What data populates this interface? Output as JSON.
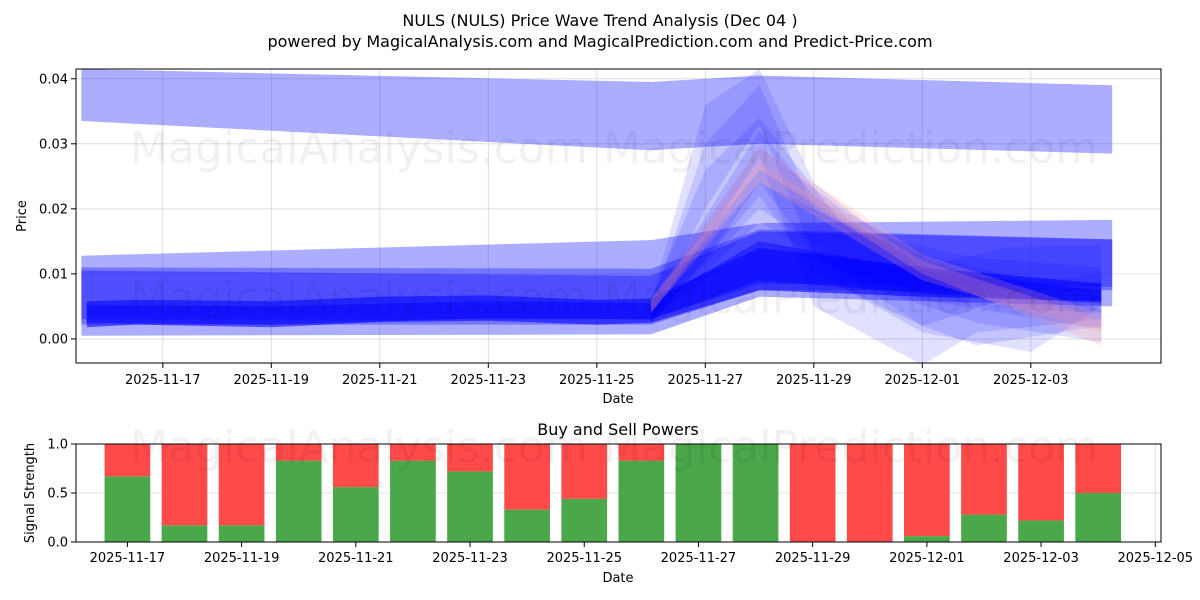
{
  "title_line1": "NULS (NULS) Price Wave Trend Analysis (Dec 04 )",
  "title_line2": "powered by MagicalAnalysis.com and MagicalPrediction.com and Predict-Price.com",
  "watermarks": [
    "MagicalAnalysis.com",
    "MagicalPrediction.com"
  ],
  "colors": {
    "band": "#0000ff",
    "band_alt": "#ff9999",
    "buy": "#4aa84a",
    "sell": "#ff4a4a",
    "grid": "#d8d8d8"
  },
  "chart_data": [
    {
      "type": "area",
      "xlabel": "Date",
      "ylabel": "Price",
      "ylim": [
        -0.0037,
        0.0415
      ],
      "xrange": [
        "2025-11-15.4",
        "2025-12-05.4"
      ],
      "x_ticks": [
        "2025-11-17",
        "2025-11-19",
        "2025-11-21",
        "2025-11-23",
        "2025-11-25",
        "2025-11-27",
        "2025-11-29",
        "2025-12-01",
        "2025-12-03"
      ],
      "y_ticks": [
        "0.00",
        "0.01",
        "0.02",
        "0.03",
        "0.04"
      ],
      "grid": true,
      "series": [
        {
          "name": "wide-upper-band",
          "color": "blue",
          "opacity": 0.32,
          "x": [
            "2025-11-15.5",
            "2025-11-26",
            "2025-11-28",
            "2025-12-04.5"
          ],
          "upper": [
            0.0415,
            0.0395,
            0.0405,
            0.039
          ],
          "lower": [
            0.0335,
            0.029,
            0.03,
            0.0285
          ]
        },
        {
          "name": "upper-channel",
          "color": "blue",
          "opacity": 0.32,
          "x": [
            "2025-11-15.5",
            "2025-11-26",
            "2025-11-28",
            "2025-12-04.5"
          ],
          "upper": [
            0.0128,
            0.0152,
            0.0178,
            0.0183
          ],
          "lower": [
            0.0005,
            0.0007,
            0.0065,
            0.005
          ]
        },
        {
          "name": "mid-channel",
          "color": "blue",
          "opacity": 0.32,
          "x": [
            "2025-11-15.5",
            "2025-11-26",
            "2025-11-28",
            "2025-12-04.5"
          ],
          "upper": [
            0.011,
            0.0108,
            0.0168,
            0.0153
          ],
          "lower": [
            0.0022,
            0.0022,
            0.0075,
            0.0075
          ]
        },
        {
          "name": "inner-channel",
          "color": "blue",
          "opacity": 0.32,
          "x": [
            "2025-11-15.5",
            "2025-11-26",
            "2025-11-28",
            "2025-12-04.5"
          ],
          "upper": [
            0.0105,
            0.0097,
            0.0165,
            0.0153
          ],
          "lower": [
            0.003,
            0.003,
            0.0085,
            0.008
          ]
        },
        {
          "name": "core-path",
          "color": "blue",
          "opacity": 0.55,
          "x": [
            "2025-11-15.6",
            "2025-11-16.5",
            "2025-11-19",
            "2025-11-21",
            "2025-11-23",
            "2025-11-25",
            "2025-11-26",
            "2025-11-28",
            "2025-12-01",
            "2025-12-04.3"
          ],
          "upper": [
            0.0058,
            0.006,
            0.0058,
            0.0065,
            0.0067,
            0.006,
            0.0062,
            0.014,
            0.011,
            0.0085
          ],
          "lower": [
            0.0018,
            0.0022,
            0.0018,
            0.0026,
            0.0028,
            0.0022,
            0.0025,
            0.0075,
            0.0065,
            0.0058
          ]
        },
        {
          "name": "core-path-2",
          "color": "blue",
          "opacity": 0.45,
          "x": [
            "2025-11-15.6",
            "2025-11-19",
            "2025-11-23",
            "2025-11-26",
            "2025-11-28",
            "2025-12-01",
            "2025-12-04.3"
          ],
          "upper": [
            0.0052,
            0.005,
            0.0058,
            0.0055,
            0.015,
            0.0105,
            0.0075
          ],
          "lower": [
            0.0025,
            0.0022,
            0.0032,
            0.003,
            0.009,
            0.007,
            0.0055
          ]
        },
        {
          "name": "spike-1",
          "color": "blue",
          "opacity": 0.12,
          "x": [
            "2025-11-26",
            "2025-11-27",
            "2025-11-28",
            "2025-11-29",
            "2025-12-01",
            "2025-12-02",
            "2025-12-04.3"
          ],
          "upper": [
            0.006,
            0.036,
            0.0415,
            0.024,
            0.011,
            0.007,
            0.008
          ],
          "lower": [
            0.003,
            0.02,
            0.033,
            0.013,
            0.002,
            -0.001,
            0.002
          ]
        },
        {
          "name": "spike-2",
          "color": "blue",
          "opacity": 0.12,
          "x": [
            "2025-11-26",
            "2025-11-27",
            "2025-11-28",
            "2025-11-29",
            "2025-12-01",
            "2025-12-02",
            "2025-12-04.3"
          ],
          "upper": [
            0.005,
            0.03,
            0.039,
            0.02,
            0.012,
            0.0045,
            0.009
          ],
          "lower": [
            0.002,
            0.015,
            0.028,
            0.005,
            -0.004,
            0.001,
            0.003
          ]
        },
        {
          "name": "spike-3",
          "color": "blue",
          "opacity": 0.12,
          "x": [
            "2025-11-26",
            "2025-11-27",
            "2025-11-28",
            "2025-11-29.5",
            "2025-12-01",
            "2025-12-03",
            "2025-12-04.3"
          ],
          "upper": [
            0.006,
            0.026,
            0.034,
            0.018,
            0.01,
            0.009,
            0.01
          ],
          "lower": [
            0.003,
            0.012,
            0.024,
            0.008,
            0.001,
            -0.002,
            0.005
          ]
        },
        {
          "name": "spike-4",
          "color": "blue",
          "opacity": 0.12,
          "x": [
            "2025-11-26",
            "2025-11-28",
            "2025-11-29",
            "2025-12-01",
            "2025-12-02.5",
            "2025-12-04.3"
          ],
          "upper": [
            0.0055,
            0.032,
            0.022,
            0.011,
            0.014,
            0.0145
          ],
          "lower": [
            0.0025,
            0.022,
            0.01,
            0.002,
            0.006,
            0.006
          ]
        },
        {
          "name": "spike-5",
          "color": "blue",
          "opacity": 0.12,
          "x": [
            "2025-11-26",
            "2025-11-28",
            "2025-11-29.5",
            "2025-12-01",
            "2025-12-04.3"
          ],
          "upper": [
            0.006,
            0.0295,
            0.02,
            0.013,
            0.0065
          ],
          "lower": [
            0.003,
            0.02,
            0.012,
            0.006,
            0.0015
          ]
        },
        {
          "name": "spike-6",
          "color": "blue",
          "opacity": 0.12,
          "x": [
            "2025-11-26",
            "2025-11-28",
            "2025-11-30",
            "2025-12-02",
            "2025-12-04.3"
          ],
          "upper": [
            0.0055,
            0.026,
            0.016,
            0.0095,
            0.0045
          ],
          "lower": [
            0.0025,
            0.018,
            0.008,
            0.0025,
            -0.0005
          ]
        },
        {
          "name": "spike-7",
          "color": "blue",
          "opacity": 0.12,
          "x": [
            "2025-11-26",
            "2025-11-28",
            "2025-11-30",
            "2025-12-02",
            "2025-12-04.3"
          ],
          "upper": [
            0.006,
            0.024,
            0.016,
            0.0125,
            0.011
          ],
          "lower": [
            0.003,
            0.015,
            0.009,
            0.005,
            0.004
          ]
        },
        {
          "name": "pink-band-1",
          "color": "pink",
          "opacity": 0.22,
          "x": [
            "2025-11-26",
            "2025-11-28",
            "2025-12-01",
            "2025-12-04.3"
          ],
          "upper": [
            0.006,
            0.0295,
            0.013,
            0.004
          ],
          "lower": [
            0.004,
            0.026,
            0.01,
            -0.001
          ]
        },
        {
          "name": "pink-band-2",
          "color": "pink",
          "opacity": 0.22,
          "x": [
            "2025-11-26",
            "2025-11-28",
            "2025-12-01",
            "2025-12-04.3"
          ],
          "upper": [
            0.006,
            0.027,
            0.012,
            0.003
          ],
          "lower": [
            0.004,
            0.024,
            0.009,
            0.001
          ]
        }
      ]
    },
    {
      "type": "bar",
      "title": "Buy and Sell Powers",
      "xlabel": "Date",
      "ylabel": "Signal Strength",
      "ylim": [
        0,
        1
      ],
      "xrange": [
        "2025-11-16.1",
        "2025-12-05.1"
      ],
      "x_ticks": [
        "2025-11-17",
        "2025-11-19",
        "2025-11-21",
        "2025-11-23",
        "2025-11-25",
        "2025-11-27",
        "2025-11-29",
        "2025-12-01",
        "2025-12-03",
        "2025-12-05"
      ],
      "y_ticks": [
        "0.0",
        "0.5",
        "1.0"
      ],
      "grid": true,
      "categories": [
        "2025-11-17",
        "2025-11-18",
        "2025-11-19",
        "2025-11-20",
        "2025-11-21",
        "2025-11-22",
        "2025-11-23",
        "2025-11-24",
        "2025-11-25",
        "2025-11-26",
        "2025-11-27",
        "2025-11-28",
        "2025-11-29",
        "2025-11-30",
        "2025-12-01",
        "2025-12-02",
        "2025-12-03",
        "2025-12-04"
      ],
      "series": [
        {
          "name": "Buy",
          "values": [
            0.67,
            0.17,
            0.17,
            0.83,
            0.56,
            0.83,
            0.72,
            0.33,
            0.44,
            0.83,
            1.0,
            1.0,
            0.0,
            0.0,
            0.06,
            0.28,
            0.22,
            0.5
          ]
        },
        {
          "name": "Sell",
          "values": [
            0.33,
            0.83,
            0.83,
            0.17,
            0.44,
            0.17,
            0.28,
            0.67,
            0.56,
            0.17,
            0.0,
            0.0,
            1.0,
            1.0,
            0.94,
            0.72,
            0.78,
            0.5
          ]
        }
      ]
    }
  ]
}
